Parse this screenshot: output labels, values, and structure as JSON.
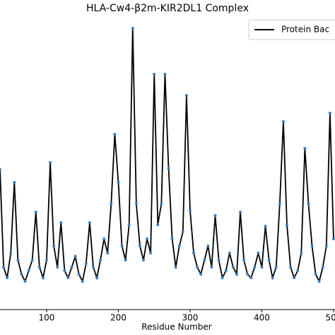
{
  "chart_data": {
    "type": "line",
    "title": "HLA-Cw4-β2m-KIR2DL1 Complex",
    "x_label": "Residue Number",
    "legend": "upper right",
    "xlim": [
      35,
      502
    ],
    "ylim": [
      0,
      413
    ],
    "xticks": [
      100,
      200,
      300,
      400,
      500
    ],
    "x": [
      35,
      40,
      45,
      50,
      55,
      60,
      65,
      70,
      75,
      80,
      85,
      90,
      95,
      100,
      105,
      110,
      115,
      120,
      125,
      130,
      135,
      140,
      145,
      150,
      155,
      160,
      165,
      170,
      175,
      180,
      185,
      190,
      195,
      200,
      205,
      210,
      215,
      220,
      225,
      230,
      235,
      240,
      245,
      250,
      255,
      260,
      265,
      270,
      275,
      280,
      285,
      290,
      295,
      300,
      305,
      310,
      315,
      320,
      325,
      330,
      335,
      340,
      345,
      350,
      355,
      360,
      365,
      370,
      375,
      380,
      385,
      390,
      395,
      400,
      405,
      410,
      415,
      420,
      425,
      430,
      435,
      440,
      445,
      450,
      455,
      460,
      465,
      470,
      475,
      480,
      485,
      490,
      495,
      500
    ],
    "series": [
      {
        "name": "Protein Bac",
        "color": "#000000",
        "marker_color": "#3b7bb5",
        "values": [
          198,
          60,
          45,
          80,
          180,
          70,
          50,
          40,
          55,
          70,
          138,
          60,
          45,
          70,
          208,
          90,
          60,
          123,
          55,
          45,
          60,
          75,
          50,
          40,
          65,
          123,
          60,
          45,
          70,
          100,
          80,
          150,
          248,
          180,
          90,
          70,
          120,
          398,
          150,
          90,
          70,
          100,
          80,
          333,
          120,
          150,
          333,
          200,
          100,
          60,
          90,
          110,
          303,
          140,
          80,
          60,
          50,
          70,
          90,
          60,
          133,
          70,
          45,
          55,
          80,
          60,
          50,
          138,
          70,
          50,
          45,
          60,
          80,
          60,
          118,
          70,
          45,
          60,
          150,
          266,
          120,
          60,
          45,
          55,
          80,
          228,
          150,
          90,
          50,
          40,
          60,
          90,
          278,
          100
        ]
      }
    ]
  }
}
